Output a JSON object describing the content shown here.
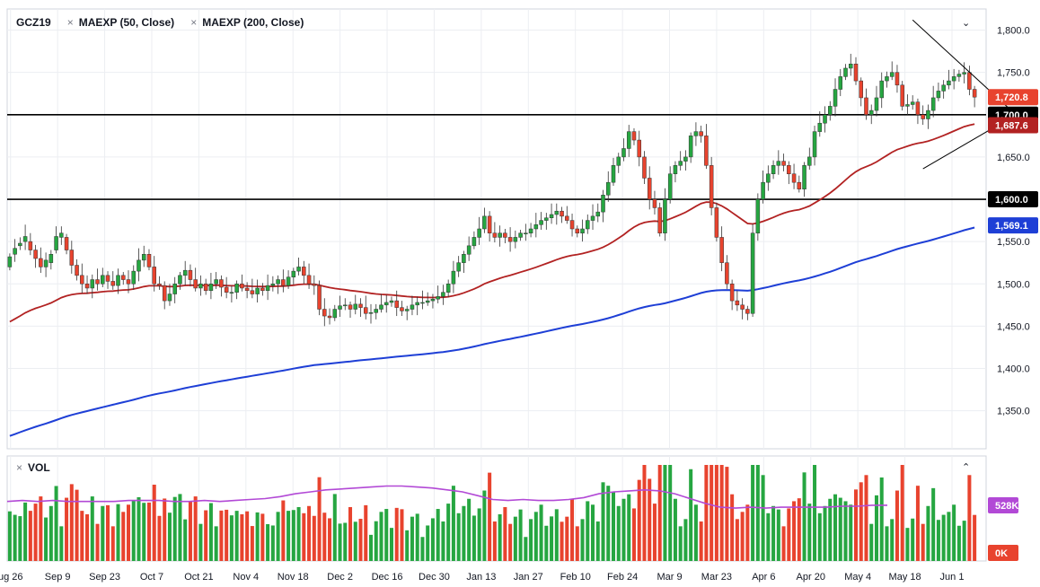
{
  "legend": {
    "symbol": "GCZ19",
    "ind1": "MAEXP (50, Close)",
    "ind2": "MAEXP (200, Close)",
    "close_glyph": "×"
  },
  "volume_panel": {
    "label": "VOL",
    "collapse_icon": "chevron-up-icon"
  },
  "price_panel": {
    "collapse_icon": "chevron-down-icon"
  },
  "colors": {
    "up": "#26a641",
    "down": "#e8432e",
    "ema50": "#b22222",
    "ema200": "#1e3fd6",
    "vol_ma": "#b249d6",
    "trendline": "#000000"
  },
  "chart_data": {
    "type": "candlestick",
    "y_range": [
      1305,
      1825
    ],
    "y_ticks": [
      "1,800.0",
      "1,750.0",
      "1,700.0",
      "1,650.0",
      "1,600.0",
      "1,550.0",
      "1,500.0",
      "1,450.0",
      "1,400.0",
      "1,350.0"
    ],
    "y_tick_values": [
      1800,
      1750,
      1700,
      1650,
      1600,
      1550,
      1500,
      1450,
      1400,
      1350
    ],
    "x_ticks": [
      "ug 26",
      "Sep 9",
      "Sep 23",
      "Oct 7",
      "Oct 21",
      "Nov 4",
      "Nov 18",
      "Dec 2",
      "Dec 16",
      "Dec 30",
      "Jan 13",
      "Jan 27",
      "Feb 10",
      "Feb 24",
      "Mar 9",
      "Mar 23",
      "Apr 6",
      "Apr 20",
      "May 4",
      "May 18",
      "Jun 1"
    ],
    "x_tick_days": [
      1,
      15,
      29,
      43,
      57,
      71,
      85,
      99,
      113,
      127,
      141,
      155,
      169,
      183,
      197,
      211,
      225,
      239,
      253,
      267,
      281
    ],
    "horizontal_lines": [
      1700,
      1600
    ],
    "price_tags": [
      {
        "label": "1,720.8",
        "value": 1720.8,
        "color": "#e8432e"
      },
      {
        "label": "1,700.0",
        "value": 1700,
        "color": "#000000"
      },
      {
        "label": "1,687.6",
        "value": 1687.6,
        "color": "#b22222"
      },
      {
        "label": "1,600.0",
        "value": 1600,
        "color": "#000000"
      },
      {
        "label": "1,569.1",
        "value": 1569.1,
        "color": "#1e3fd6"
      }
    ],
    "volume_tags": [
      {
        "label": "528K",
        "color": "#b249d6"
      },
      {
        "label": "0K",
        "color": "#e8432e"
      }
    ],
    "closes": [
      1532,
      1542,
      1548,
      1556,
      1540,
      1530,
      1520,
      1528,
      1535,
      1556,
      1560,
      1540,
      1522,
      1510,
      1500,
      1495,
      1505,
      1500,
      1510,
      1503,
      1498,
      1510,
      1505,
      1500,
      1515,
      1528,
      1535,
      1520,
      1500,
      1498,
      1480,
      1488,
      1500,
      1510,
      1516,
      1505,
      1495,
      1500,
      1492,
      1500,
      1505,
      1496,
      1490,
      1490,
      1500,
      1495,
      1492,
      1488,
      1495,
      1492,
      1498,
      1500,
      1505,
      1498,
      1508,
      1515,
      1520,
      1510,
      1500,
      1498,
      1470,
      1462,
      1460,
      1470,
      1474,
      1475,
      1470,
      1476,
      1472,
      1465,
      1466,
      1470,
      1475,
      1478,
      1480,
      1472,
      1468,
      1470,
      1475,
      1478,
      1478,
      1480,
      1482,
      1485,
      1490,
      1500,
      1515,
      1525,
      1535,
      1545,
      1555,
      1565,
      1580,
      1560,
      1555,
      1560,
      1555,
      1550,
      1555,
      1560,
      1560,
      1565,
      1570,
      1575,
      1578,
      1582,
      1586,
      1580,
      1575,
      1565,
      1560,
      1565,
      1575,
      1580,
      1585,
      1605,
      1620,
      1640,
      1650,
      1660,
      1680,
      1670,
      1650,
      1625,
      1600,
      1590,
      1560,
      1600,
      1630,
      1640,
      1645,
      1650,
      1675,
      1680,
      1675,
      1640,
      1590,
      1555,
      1525,
      1500,
      1480,
      1475,
      1470,
      1465,
      1560,
      1600,
      1620,
      1630,
      1640,
      1645,
      1640,
      1630,
      1620,
      1612,
      1640,
      1650,
      1680,
      1690,
      1700,
      1710,
      1730,
      1745,
      1755,
      1760,
      1740,
      1720,
      1700,
      1705,
      1720,
      1740,
      1745,
      1750,
      1735,
      1710,
      1712,
      1715,
      1700,
      1695,
      1705,
      1720,
      1728,
      1735,
      1740,
      1745,
      1748,
      1750,
      1730,
      1720.8
    ],
    "opens": [
      1520,
      1535,
      1545,
      1550,
      1550,
      1540,
      1530,
      1520,
      1525,
      1540,
      1555,
      1555,
      1540,
      1522,
      1510,
      1500,
      1495,
      1505,
      1500,
      1510,
      1503,
      1498,
      1510,
      1505,
      1500,
      1515,
      1528,
      1535,
      1520,
      1500,
      1498,
      1480,
      1488,
      1500,
      1510,
      1516,
      1505,
      1495,
      1500,
      1492,
      1500,
      1505,
      1496,
      1490,
      1490,
      1500,
      1495,
      1492,
      1488,
      1495,
      1492,
      1498,
      1500,
      1505,
      1498,
      1508,
      1515,
      1520,
      1510,
      1500,
      1498,
      1470,
      1462,
      1460,
      1470,
      1474,
      1475,
      1470,
      1476,
      1472,
      1465,
      1466,
      1470,
      1475,
      1478,
      1480,
      1472,
      1468,
      1470,
      1475,
      1478,
      1478,
      1480,
      1482,
      1485,
      1490,
      1500,
      1515,
      1525,
      1535,
      1545,
      1555,
      1565,
      1580,
      1560,
      1555,
      1560,
      1555,
      1550,
      1555,
      1560,
      1560,
      1565,
      1570,
      1575,
      1578,
      1582,
      1586,
      1580,
      1575,
      1565,
      1560,
      1565,
      1575,
      1580,
      1585,
      1605,
      1620,
      1640,
      1650,
      1660,
      1680,
      1670,
      1650,
      1625,
      1600,
      1590,
      1560,
      1600,
      1630,
      1640,
      1645,
      1650,
      1675,
      1680,
      1675,
      1640,
      1590,
      1555,
      1525,
      1500,
      1480,
      1475,
      1470,
      1465,
      1560,
      1600,
      1620,
      1630,
      1640,
      1645,
      1640,
      1630,
      1620,
      1612,
      1640,
      1650,
      1680,
      1690,
      1700,
      1710,
      1730,
      1745,
      1755,
      1760,
      1740,
      1720,
      1700,
      1705,
      1720,
      1740,
      1745,
      1750,
      1735,
      1710,
      1712,
      1715,
      1700,
      1695,
      1705,
      1720,
      1728,
      1735,
      1740,
      1745,
      1748,
      1750,
      1730
    ],
    "volume_ma": [
      0.62,
      0.63,
      0.62,
      0.63,
      0.62,
      0.62,
      0.62,
      0.62,
      0.63,
      0.63,
      0.63,
      0.62,
      0.62,
      0.63,
      0.62,
      0.63,
      0.64,
      0.65,
      0.67,
      0.7,
      0.72,
      0.74,
      0.75,
      0.76,
      0.77,
      0.78,
      0.78,
      0.77,
      0.76,
      0.74,
      0.72,
      0.68,
      0.64,
      0.63,
      0.64,
      0.63,
      0.63,
      0.64,
      0.66,
      0.7,
      0.72,
      0.73,
      0.74,
      0.73,
      0.7,
      0.65,
      0.6,
      0.56,
      0.55,
      0.56,
      0.55,
      0.56,
      0.56,
      0.56,
      0.56,
      0.57,
      0.57,
      0.58,
      0.58
    ]
  }
}
